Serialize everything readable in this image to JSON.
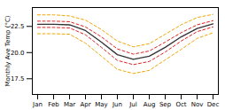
{
  "chart_data": {
    "type": "line",
    "categories": [
      "Jan",
      "Feb",
      "Mar",
      "Apr",
      "May",
      "Jun",
      "Jul",
      "Aug",
      "Sep",
      "Oct",
      "Nov",
      "Dec"
    ],
    "series": [
      {
        "color": "#f0a500",
        "line_style": "dashed",
        "values": [
          21.8,
          21.8,
          21.75,
          20.9,
          19.65,
          18.4,
          18.0,
          18.3,
          19.3,
          20.3,
          21.35,
          21.9
        ]
      },
      {
        "color": "#f0a500",
        "line_style": "dashed",
        "values": [
          23.6,
          23.6,
          23.5,
          23.1,
          22.2,
          21.1,
          20.55,
          20.85,
          21.75,
          22.65,
          23.35,
          23.65
        ]
      },
      {
        "color": "#dd2222",
        "line_style": "dashed",
        "values": [
          22.4,
          22.4,
          22.35,
          21.7,
          20.5,
          19.25,
          18.85,
          19.15,
          20.05,
          21.1,
          22.0,
          22.45
        ]
      },
      {
        "color": "#dd2222",
        "line_style": "dashed",
        "values": [
          23.0,
          23.0,
          22.95,
          22.45,
          21.5,
          20.35,
          19.85,
          20.15,
          21.0,
          21.9,
          22.65,
          23.05
        ]
      },
      {
        "color": "#333333",
        "line_style": "solid",
        "values": [
          22.7,
          22.7,
          22.65,
          22.1,
          21.0,
          19.8,
          19.35,
          19.65,
          20.5,
          21.5,
          22.3,
          22.75
        ]
      }
    ],
    "ylabel": "Monthly Ave Temp (°C)",
    "ylim": [
      16.0,
      24.3
    ],
    "yticks": [
      17.5,
      {
        "value": 20.0,
        "label": "20.0"
      },
      22.5
    ],
    "grid": false
  }
}
